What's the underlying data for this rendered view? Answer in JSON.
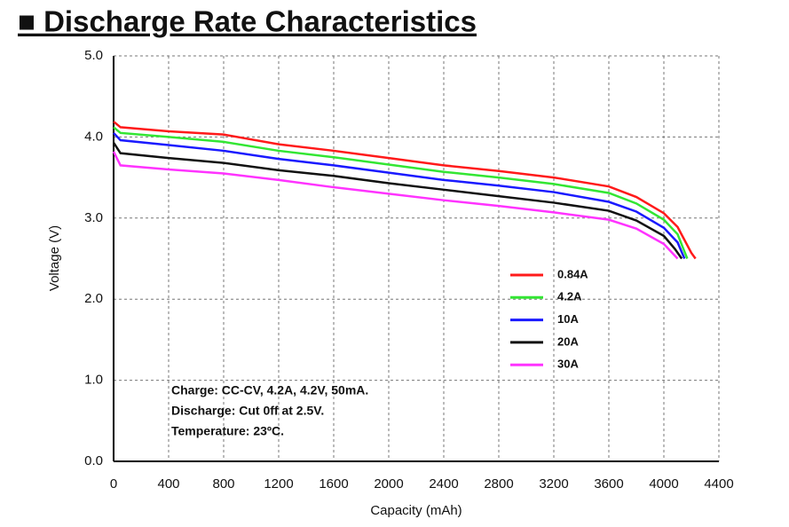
{
  "chart_data": {
    "type": "line",
    "title": "■ Discharge Rate Characteristics",
    "x_label": "Capacity (mAh)",
    "y_label": "Voltage (V)",
    "xlim": [
      0,
      4400
    ],
    "ylim": [
      0,
      5
    ],
    "xticks": [
      0,
      400,
      800,
      1200,
      1600,
      2000,
      2400,
      2800,
      3200,
      3600,
      4000,
      4400
    ],
    "yticks": [
      {
        "value": 0,
        "label": "0.0"
      },
      {
        "value": 1,
        "label": "1.0"
      },
      {
        "value": 2,
        "label": "2.0"
      },
      {
        "value": 3,
        "label": "3.0"
      },
      {
        "value": 4,
        "label": "4.0"
      },
      {
        "value": 5,
        "label": "5.0"
      }
    ],
    "grid": true,
    "legend": "right",
    "annotations": [
      "Charge: CC-CV, 4.2A, 4.2V, 50mA.",
      "Discharge: Cut 0ff at 2.5V.",
      "Temperature: 23ºC."
    ],
    "series": [
      {
        "name": "0.84A",
        "color": "#ff1a1a",
        "x": [
          0,
          50,
          400,
          800,
          1200,
          1600,
          2000,
          2400,
          2800,
          3200,
          3600,
          3800,
          4000,
          4100,
          4200,
          4230
        ],
        "values": [
          4.19,
          4.12,
          4.07,
          4.03,
          3.91,
          3.83,
          3.74,
          3.65,
          3.58,
          3.5,
          3.39,
          3.26,
          3.06,
          2.89,
          2.57,
          2.5
        ]
      },
      {
        "name": "4.2A",
        "color": "#33e633",
        "x": [
          0,
          50,
          400,
          800,
          1200,
          1600,
          2000,
          2400,
          2800,
          3200,
          3600,
          3800,
          4000,
          4100,
          4170
        ],
        "values": [
          4.12,
          4.05,
          4.0,
          3.94,
          3.83,
          3.75,
          3.66,
          3.57,
          3.5,
          3.42,
          3.31,
          3.18,
          2.98,
          2.8,
          2.5
        ]
      },
      {
        "name": "10A",
        "color": "#1a1aff",
        "x": [
          0,
          50,
          400,
          800,
          1200,
          1600,
          2000,
          2400,
          2800,
          3200,
          3600,
          3800,
          4000,
          4100,
          4150
        ],
        "values": [
          4.05,
          3.96,
          3.9,
          3.83,
          3.73,
          3.65,
          3.56,
          3.47,
          3.4,
          3.32,
          3.2,
          3.08,
          2.88,
          2.7,
          2.5
        ]
      },
      {
        "name": "20A",
        "color": "#111111",
        "x": [
          0,
          50,
          400,
          800,
          1200,
          1600,
          2000,
          2400,
          2800,
          3200,
          3600,
          3800,
          4000,
          4080,
          4130
        ],
        "values": [
          3.93,
          3.8,
          3.74,
          3.68,
          3.59,
          3.52,
          3.43,
          3.35,
          3.27,
          3.19,
          3.09,
          2.97,
          2.78,
          2.62,
          2.5
        ]
      },
      {
        "name": "30A",
        "color": "#ff33ff",
        "x": [
          0,
          50,
          400,
          800,
          1200,
          1600,
          2000,
          2400,
          2800,
          3200,
          3600,
          3800,
          4000,
          4100
        ],
        "values": [
          3.82,
          3.65,
          3.6,
          3.55,
          3.47,
          3.38,
          3.3,
          3.22,
          3.15,
          3.07,
          2.98,
          2.87,
          2.68,
          2.5
        ]
      }
    ]
  }
}
